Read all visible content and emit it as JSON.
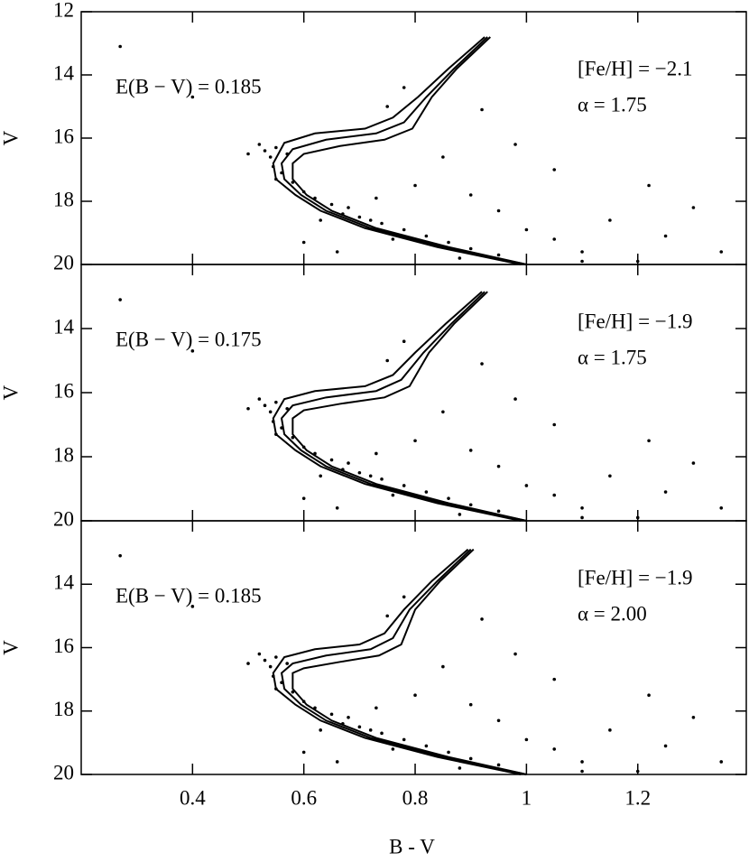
{
  "chart_data": [
    {
      "type": "scatter",
      "ylabel": "V",
      "annotations": [
        "E(B − V) = 0.185",
        "[Fe/H] = −2.1",
        "α = 1.75"
      ],
      "xlim": [
        0.2,
        1.395
      ],
      "ylim": [
        12,
        20
      ],
      "y_reversed": true,
      "xticks": [
        0.4,
        0.6,
        0.8,
        1,
        1.2
      ],
      "yticks": [
        12,
        14,
        16,
        18,
        20
      ],
      "color": "#000000",
      "points": {
        "x": [
          0.53,
          0.54,
          0.55,
          0.545,
          0.56,
          0.57,
          0.52,
          0.55,
          0.58,
          0.6,
          0.62,
          0.65,
          0.67,
          0.7,
          0.74,
          0.78,
          0.82,
          0.86,
          0.9,
          0.95,
          0.68,
          0.72,
          0.63,
          0.76,
          0.88,
          0.6,
          0.66,
          0.73,
          0.8,
          0.85,
          0.9,
          0.95,
          1.0,
          1.05,
          1.1,
          1.15,
          1.2,
          1.25,
          1.3,
          1.35,
          1.05,
          0.98,
          0.92,
          0.78,
          0.75,
          0.4,
          0.27,
          0.5,
          1.1,
          1.22
        ],
        "y": [
          16.4,
          16.6,
          16.3,
          16.9,
          17.1,
          16.5,
          16.2,
          17.3,
          17.4,
          17.7,
          17.9,
          18.1,
          18.4,
          18.5,
          18.7,
          18.9,
          19.1,
          19.3,
          19.5,
          19.7,
          18.2,
          18.6,
          18.6,
          19.2,
          19.8,
          19.3,
          19.6,
          17.9,
          17.5,
          16.6,
          17.8,
          18.3,
          18.9,
          19.2,
          19.6,
          18.6,
          19.9,
          19.1,
          18.2,
          19.6,
          17.0,
          16.2,
          15.1,
          14.4,
          15.0,
          14.7,
          13.1,
          16.5,
          19.9,
          17.5
        ]
      },
      "lines": [
        {
          "x": [
            0.99,
            0.84,
            0.71,
            0.63,
            0.585,
            0.55,
            0.545,
            0.565,
            0.62,
            0.71,
            0.76,
            0.805,
            0.86,
            0.925
          ],
          "y": [
            20,
            19.45,
            18.85,
            18.3,
            17.8,
            17.3,
            16.8,
            16.15,
            15.85,
            15.7,
            15.35,
            14.7,
            13.8,
            12.8
          ]
        },
        {
          "x": [
            1.0,
            0.85,
            0.72,
            0.64,
            0.595,
            0.565,
            0.56,
            0.58,
            0.64,
            0.73,
            0.78,
            0.82,
            0.87,
            0.93
          ],
          "y": [
            20,
            19.45,
            18.85,
            18.3,
            17.8,
            17.3,
            16.8,
            16.35,
            16.05,
            15.85,
            15.5,
            14.7,
            13.8,
            12.8
          ]
        },
        {
          "x": [
            1.0,
            0.86,
            0.73,
            0.65,
            0.605,
            0.58,
            0.58,
            0.6,
            0.665,
            0.745,
            0.795,
            0.83,
            0.875,
            0.935
          ],
          "y": [
            20,
            19.45,
            18.85,
            18.3,
            17.8,
            17.3,
            16.8,
            16.5,
            16.25,
            16.05,
            15.7,
            14.7,
            13.8,
            12.8
          ]
        }
      ]
    },
    {
      "type": "scatter",
      "ylabel": "V",
      "annotations": [
        "E(B − V) = 0.175",
        "[Fe/H] = −1.9",
        "α = 1.75"
      ],
      "xlim": [
        0.2,
        1.395
      ],
      "ylim": [
        12,
        20
      ],
      "y_reversed": true,
      "xticks": [
        0.4,
        0.6,
        0.8,
        1,
        1.2
      ],
      "yticks": [
        14,
        16,
        18,
        20
      ],
      "color": "#000000",
      "points": {
        "x": [
          0.53,
          0.54,
          0.55,
          0.545,
          0.56,
          0.57,
          0.52,
          0.55,
          0.58,
          0.6,
          0.62,
          0.65,
          0.67,
          0.7,
          0.74,
          0.78,
          0.82,
          0.86,
          0.9,
          0.95,
          0.68,
          0.72,
          0.63,
          0.76,
          0.88,
          0.6,
          0.66,
          0.73,
          0.8,
          0.85,
          0.9,
          0.95,
          1.0,
          1.05,
          1.1,
          1.15,
          1.2,
          1.25,
          1.3,
          1.35,
          1.05,
          0.98,
          0.92,
          0.78,
          0.75,
          0.4,
          0.27,
          0.5,
          1.1,
          1.22
        ],
        "y": [
          16.4,
          16.6,
          16.3,
          16.9,
          17.1,
          16.5,
          16.2,
          17.3,
          17.4,
          17.7,
          17.9,
          18.1,
          18.4,
          18.5,
          18.7,
          18.9,
          19.1,
          19.3,
          19.5,
          19.7,
          18.2,
          18.6,
          18.6,
          19.2,
          19.8,
          19.3,
          19.6,
          17.9,
          17.5,
          16.6,
          17.8,
          18.3,
          18.9,
          19.2,
          19.6,
          18.6,
          19.9,
          19.1,
          18.2,
          19.6,
          17.0,
          16.2,
          15.1,
          14.4,
          15.0,
          14.7,
          13.1,
          16.5,
          19.9,
          17.5
        ]
      },
      "lines": [
        {
          "x": [
            0.99,
            0.84,
            0.71,
            0.63,
            0.585,
            0.55,
            0.545,
            0.565,
            0.62,
            0.71,
            0.76,
            0.8,
            0.855,
            0.92
          ],
          "y": [
            20,
            19.45,
            18.85,
            18.3,
            17.8,
            17.3,
            16.8,
            16.2,
            15.95,
            15.8,
            15.45,
            14.75,
            13.85,
            12.85
          ]
        },
        {
          "x": [
            1.0,
            0.85,
            0.72,
            0.64,
            0.595,
            0.565,
            0.56,
            0.58,
            0.64,
            0.73,
            0.775,
            0.815,
            0.865,
            0.925
          ],
          "y": [
            20,
            19.45,
            18.85,
            18.3,
            17.8,
            17.3,
            16.8,
            16.4,
            16.15,
            15.95,
            15.6,
            14.75,
            13.85,
            12.85
          ]
        },
        {
          "x": [
            1.0,
            0.86,
            0.73,
            0.65,
            0.605,
            0.58,
            0.58,
            0.6,
            0.665,
            0.745,
            0.79,
            0.825,
            0.87,
            0.93
          ],
          "y": [
            20,
            19.45,
            18.85,
            18.3,
            17.8,
            17.3,
            16.8,
            16.55,
            16.35,
            16.15,
            15.8,
            14.75,
            13.85,
            12.85
          ]
        }
      ]
    },
    {
      "type": "scatter",
      "ylabel": "V",
      "xlabel": "B - V",
      "annotations": [
        "E(B − V) = 0.185",
        "[Fe/H] = −1.9",
        "α = 2.00"
      ],
      "xlim": [
        0.2,
        1.395
      ],
      "ylim": [
        12,
        20
      ],
      "y_reversed": true,
      "xticks": [
        0.4,
        0.6,
        0.8,
        1,
        1.2
      ],
      "yticks": [
        14,
        16,
        18,
        20
      ],
      "color": "#000000",
      "points": {
        "x": [
          0.53,
          0.54,
          0.55,
          0.545,
          0.56,
          0.57,
          0.52,
          0.55,
          0.58,
          0.6,
          0.62,
          0.65,
          0.67,
          0.7,
          0.74,
          0.78,
          0.82,
          0.86,
          0.9,
          0.95,
          0.68,
          0.72,
          0.63,
          0.76,
          0.88,
          0.6,
          0.66,
          0.73,
          0.8,
          0.85,
          0.9,
          0.95,
          1.0,
          1.05,
          1.1,
          1.15,
          1.2,
          1.25,
          1.3,
          1.35,
          1.05,
          0.98,
          0.92,
          0.78,
          0.75,
          0.4,
          0.27,
          0.5,
          1.1,
          1.22
        ],
        "y": [
          16.4,
          16.6,
          16.3,
          16.9,
          17.1,
          16.5,
          16.2,
          17.3,
          17.4,
          17.7,
          17.9,
          18.1,
          18.4,
          18.5,
          18.7,
          18.9,
          19.1,
          19.3,
          19.5,
          19.7,
          18.2,
          18.6,
          18.6,
          19.2,
          19.8,
          19.3,
          19.6,
          17.9,
          17.5,
          16.6,
          17.8,
          18.3,
          18.9,
          19.2,
          19.6,
          18.6,
          19.9,
          19.1,
          18.2,
          19.6,
          17.0,
          16.2,
          15.1,
          14.4,
          15.0,
          14.7,
          13.1,
          16.5,
          19.9,
          17.5
        ]
      },
      "lines": [
        {
          "x": [
            0.99,
            0.84,
            0.71,
            0.63,
            0.585,
            0.55,
            0.545,
            0.565,
            0.62,
            0.7,
            0.745,
            0.78,
            0.83,
            0.895
          ],
          "y": [
            20,
            19.45,
            18.85,
            18.3,
            17.8,
            17.3,
            16.8,
            16.3,
            16.05,
            15.9,
            15.55,
            14.8,
            13.9,
            12.9
          ]
        },
        {
          "x": [
            1.0,
            0.85,
            0.72,
            0.64,
            0.595,
            0.565,
            0.56,
            0.58,
            0.64,
            0.72,
            0.76,
            0.79,
            0.84,
            0.9
          ],
          "y": [
            20,
            19.45,
            18.85,
            18.3,
            17.8,
            17.3,
            16.8,
            16.5,
            16.25,
            16.05,
            15.7,
            14.8,
            13.9,
            12.9
          ]
        },
        {
          "x": [
            1.0,
            0.86,
            0.73,
            0.65,
            0.605,
            0.58,
            0.58,
            0.6,
            0.665,
            0.735,
            0.775,
            0.8,
            0.845,
            0.905
          ],
          "y": [
            20,
            19.45,
            18.85,
            18.3,
            17.8,
            17.3,
            16.8,
            16.65,
            16.45,
            16.25,
            15.9,
            14.8,
            13.9,
            12.9
          ]
        }
      ]
    }
  ]
}
